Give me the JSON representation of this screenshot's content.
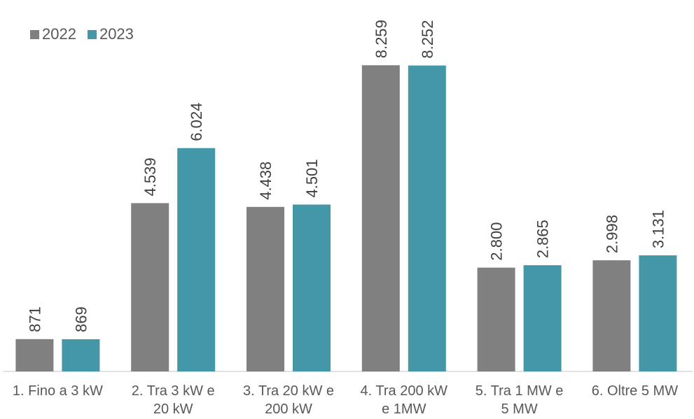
{
  "chart_data": {
    "type": "bar",
    "categories": [
      "1. Fino a 3 kW",
      "2. Tra 3 kW e 20 kW",
      "3. Tra 20 kW e 200 kW",
      "4. Tra 200 kW e 1MW",
      "5. Tra 1 MW e 5 MW",
      "6. Oltre 5 MW"
    ],
    "category_lines": [
      [
        "1. Fino a 3 kW"
      ],
      [
        "2. Tra 3 kW e",
        "20 kW"
      ],
      [
        "3. Tra 20 kW e",
        "200 kW"
      ],
      [
        "4. Tra 200 kW",
        "e 1MW"
      ],
      [
        "5. Tra 1 MW e",
        "5 MW"
      ],
      [
        "6. Oltre 5 MW"
      ]
    ],
    "series": [
      {
        "name": "2022",
        "color": "#808080",
        "values": [
          871,
          4539,
          4438,
          8259,
          2800,
          2998
        ],
        "labels": [
          "871",
          "4.539",
          "4.438",
          "8.259",
          "2.800",
          "2.998"
        ]
      },
      {
        "name": "2023",
        "color": "#4397A6",
        "values": [
          869,
          6024,
          4501,
          8252,
          2865,
          3131
        ],
        "labels": [
          "869",
          "6.024",
          "4.501",
          "8.252",
          "2.865",
          "3.131"
        ]
      }
    ],
    "ylim": [
      0,
      9000
    ],
    "grid": false,
    "legend": "top-left",
    "title": "",
    "xlabel": "",
    "ylabel": ""
  }
}
